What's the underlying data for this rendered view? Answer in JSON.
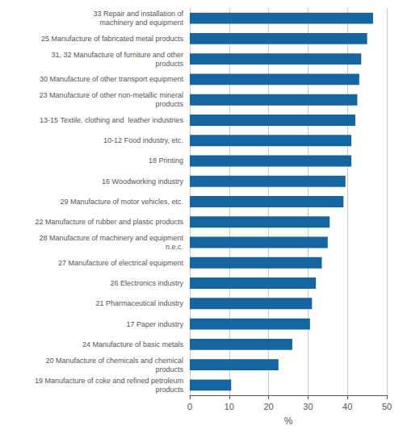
{
  "chart_data": {
    "type": "bar",
    "orientation": "horizontal",
    "categories": [
      "19 Manufacture of coke and refined petroleum\nproducts",
      "20 Manufacture of chemicals and chemical\nproducts",
      "24 Manufacture of basic metals",
      "17 Paper industry",
      "21 Pharmaceutical industry",
      "26 Electronics industry",
      "27 Manufacture of electrical equipment",
      "28 Manufacture of machinery and equipment\nn.e.c.",
      "22 Manufacture of rubber and plastic products",
      "29 Manufacture of motor vehicles, etc.",
      "16 Woodworking industry",
      "18 Printing",
      "10-12 Food industry, etc.",
      "13-15 Textile, clothing and  leather industries",
      "23 Manufacture of other non-metallic mineral\nproducts",
      "30 Manufacture of other transport equipment",
      "31, 32 Manufacture of furniture and other\nproducts",
      "25 Manufacture of fabricated metal products",
      "33 Repair and installation of\nmachinery and equipment"
    ],
    "values": [
      10.5,
      22.5,
      26.0,
      30.5,
      31.0,
      32.0,
      33.5,
      35.0,
      35.5,
      39.0,
      39.5,
      41.0,
      41.0,
      42.0,
      42.5,
      43.0,
      43.5,
      45.0,
      46.5
    ],
    "color": "#1465a0",
    "xlabel": "%",
    "xlim": [
      0,
      50
    ],
    "xticks": [
      0,
      10,
      20,
      30,
      40,
      50
    ],
    "grid": true
  }
}
